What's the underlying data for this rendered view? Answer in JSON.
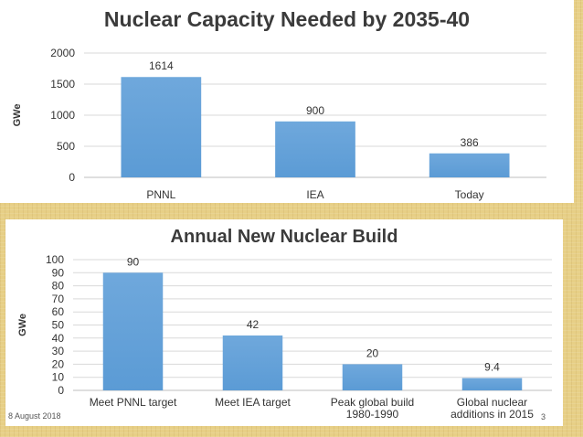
{
  "chart_data": [
    {
      "type": "bar",
      "title": "Nuclear Capacity Needed by 2035-40",
      "xlabel": "",
      "ylabel": "GWe",
      "categories": [
        "PNNL",
        "IEA",
        "Today"
      ],
      "category_lines": [
        [
          "PNNL"
        ],
        [
          "IEA"
        ],
        [
          "Today"
        ]
      ],
      "values": [
        1614,
        900,
        386
      ],
      "data_labels": [
        "1614",
        "900",
        "386"
      ],
      "ylim": [
        0,
        2000
      ],
      "yticks": [
        0,
        500,
        1000,
        1500,
        2000
      ],
      "grid": true,
      "bar_color": "#5b9bd5"
    },
    {
      "type": "bar",
      "title": "Annual New Nuclear Build",
      "xlabel": "",
      "ylabel": "GWe",
      "categories": [
        "Meet PNNL target",
        "Meet IEA target",
        "Peak global build 1980-1990",
        "Global nuclear additions in 2015"
      ],
      "category_lines": [
        [
          "Meet PNNL target"
        ],
        [
          "Meet IEA target"
        ],
        [
          "Peak global build",
          "1980-1990"
        ],
        [
          "Global nuclear",
          "additions in 2015"
        ]
      ],
      "values": [
        90,
        42,
        20,
        9.4
      ],
      "data_labels": [
        "90",
        "42",
        "20",
        "9.4"
      ],
      "ylim": [
        0,
        100
      ],
      "yticks": [
        0,
        10,
        20,
        30,
        40,
        50,
        60,
        70,
        80,
        90,
        100
      ],
      "grid": true,
      "bar_color": "#5b9bd5"
    }
  ],
  "footer": {
    "date": "8 August 2018",
    "page": "3"
  }
}
